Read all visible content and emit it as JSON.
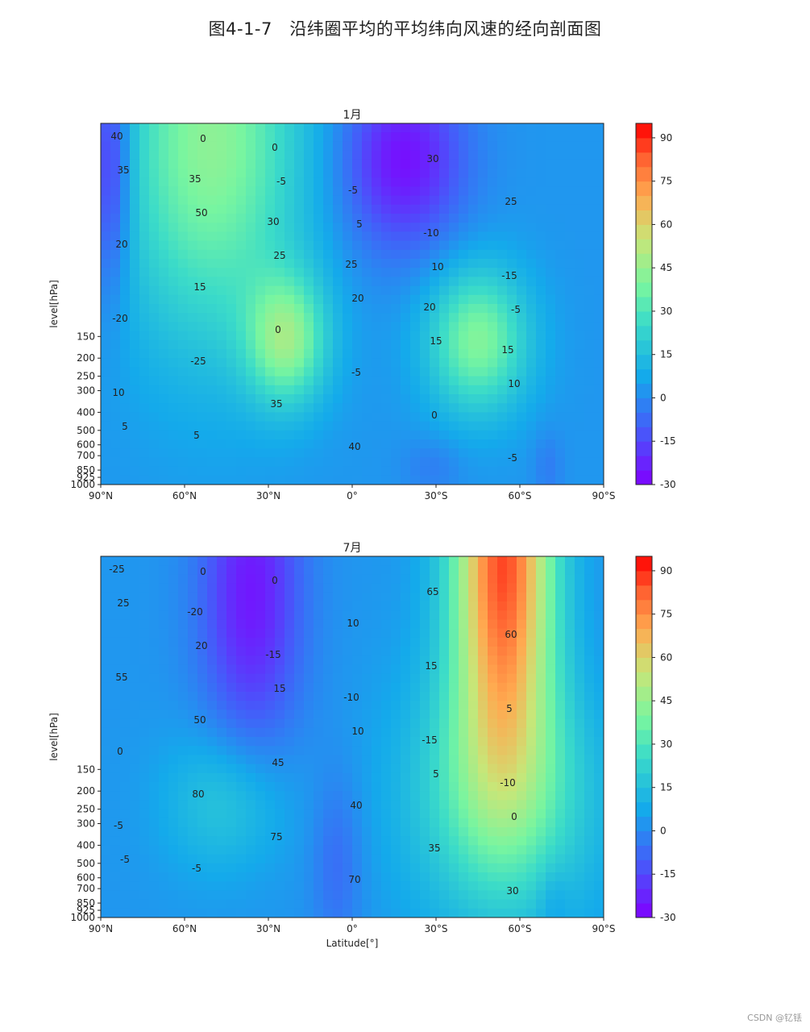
{
  "figure_title": "图4-1-7　沿纬圈平均的平均纬向风速的经向剖面图",
  "watermark": "CSDN @钇铥",
  "chart_data": [
    {
      "type": "contour",
      "title": "1月",
      "ylabel": "level[hPa]",
      "xlabel": "",
      "x_ticks": [
        "90°N",
        "60°N",
        "30°N",
        "0°",
        "30°S",
        "60°S",
        "90°S"
      ],
      "y_ticks": [
        "150",
        "200",
        "250",
        "300",
        "400",
        "500",
        "600",
        "700",
        "850",
        "925",
        "1000"
      ],
      "colorbar_ticks": [
        "90",
        "75",
        "60",
        "45",
        "30",
        "15",
        "0",
        "-15",
        "-30"
      ],
      "colorbar_range": [
        -30,
        95
      ],
      "colormap": "rainbow",
      "contour_labels": [
        "40",
        "35",
        "30",
        "25",
        "20",
        "15",
        "10",
        "5",
        "0",
        "-5",
        "-10",
        "-15",
        "-20",
        "-25",
        "35",
        "40",
        "30",
        "25",
        "20",
        "15",
        "0",
        "-5",
        "0",
        "-5",
        "35",
        "50",
        "25",
        "20",
        "15",
        "10",
        "5",
        "0",
        "-5",
        "5",
        "10",
        "-5"
      ]
    },
    {
      "type": "contour",
      "title": "7月",
      "ylabel": "level[hPa]",
      "xlabel": "Latitude[°]",
      "x_ticks": [
        "90°N",
        "60°N",
        "30°N",
        "0°",
        "30°S",
        "60°S",
        "90°S"
      ],
      "y_ticks": [
        "150",
        "200",
        "250",
        "300",
        "400",
        "500",
        "600",
        "700",
        "850",
        "925",
        "1000"
      ],
      "colorbar_ticks": [
        "90",
        "75",
        "60",
        "45",
        "30",
        "15",
        "0",
        "-15",
        "-30"
      ],
      "colorbar_range": [
        -30,
        95
      ],
      "colormap": "rainbow",
      "contour_labels": [
        "-25",
        "-20",
        "-15",
        "-10",
        "-15",
        "-10",
        "-5",
        "-5",
        "0",
        "10",
        "15",
        "5",
        "0",
        "80",
        "75",
        "70",
        "65",
        "60",
        "55",
        "50",
        "45",
        "40",
        "35",
        "30",
        "25",
        "20",
        "15",
        "10",
        "5",
        "0",
        "-5",
        "0"
      ]
    }
  ]
}
